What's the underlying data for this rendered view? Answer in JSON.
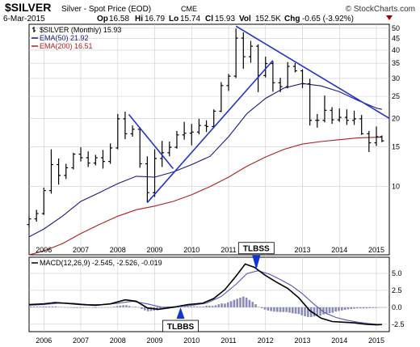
{
  "header": {
    "symbol": "$SILVER",
    "description": "Silver - Spot Price (EOD)",
    "exchange": "CME",
    "watermark": "© StockCharts.com",
    "date": "6-Mar-2015",
    "quote": {
      "open_label": "Op",
      "open": "16.58",
      "high_label": "Hi",
      "high": "16.79",
      "low_label": "Lo",
      "low": "15.74",
      "close_label": "Cl",
      "close": "15.93",
      "volume_label": "Vol",
      "volume": "152.5K",
      "change_label": "Chg",
      "change": "-0.65 (-3.92%)"
    }
  },
  "colors": {
    "price_bars": "#000000",
    "ema50": "#1a1a80",
    "ema200": "#b02020",
    "trendline": "#2233cc",
    "macd_line": "#000000",
    "signal_line": "#5555bb",
    "histogram": "#8a8ab8",
    "grid": "#cccccc"
  },
  "chart_data": [
    {
      "type": "ohlc",
      "name": "price-panel",
      "legend": [
        {
          "label": "$SILVER (Monthly) 15.93",
          "color": "#000000",
          "mark": "bar"
        },
        {
          "label": "EMA(50) 21.92",
          "color": "#1a1a80",
          "mark": "line"
        },
        {
          "label": "EMA(200) 16.51",
          "color": "#b02020",
          "mark": "line"
        }
      ],
      "yscale": "log",
      "ylim": [
        5,
        52
      ],
      "xlim": [
        2005.6,
        2015.35
      ],
      "yticks": [
        10,
        15,
        20,
        25,
        30,
        35,
        40,
        45,
        50
      ],
      "xticks": [
        2006,
        2007,
        2008,
        2009,
        2010,
        2011,
        2012,
        2013,
        2014,
        2015
      ],
      "grid": true,
      "x": [
        2005.6,
        2005.8,
        2006,
        2006.2,
        2006.4,
        2006.6,
        2006.8,
        2007,
        2007.2,
        2007.4,
        2007.6,
        2007.8,
        2008,
        2008.2,
        2008.4,
        2008.6,
        2008.8,
        2009,
        2009.2,
        2009.4,
        2009.6,
        2009.8,
        2010,
        2010.2,
        2010.4,
        2010.6,
        2010.8,
        2011,
        2011.2,
        2011.4,
        2011.6,
        2011.8,
        2012,
        2012.2,
        2012.4,
        2012.6,
        2012.8,
        2013,
        2013.2,
        2013.4,
        2013.6,
        2013.8,
        2014,
        2014.2,
        2014.4,
        2014.6,
        2014.8,
        2015,
        2015.15
      ],
      "ohlc": [
        [
          6.8,
          7.4,
          6.6,
          7.2
        ],
        [
          7.2,
          7.9,
          7.0,
          7.6
        ],
        [
          7.6,
          9.9,
          7.5,
          9.6
        ],
        [
          9.6,
          14.6,
          9.3,
          12.5
        ],
        [
          12.5,
          13.3,
          10.2,
          11.2
        ],
        [
          11.2,
          12.6,
          10.8,
          12.1
        ],
        [
          12.1,
          14.1,
          11.9,
          13.9
        ],
        [
          13.9,
          14.9,
          12.9,
          13.4
        ],
        [
          13.4,
          14.3,
          12.2,
          12.7
        ],
        [
          12.7,
          13.8,
          12.4,
          13.4
        ],
        [
          13.4,
          14.5,
          12.0,
          12.9
        ],
        [
          12.9,
          15.5,
          12.6,
          14.8
        ],
        [
          14.8,
          20.9,
          14.6,
          19.9
        ],
        [
          19.9,
          21.4,
          16.2,
          17.1
        ],
        [
          17.1,
          18.6,
          16.6,
          17.9
        ],
        [
          17.9,
          18.3,
          12.1,
          12.6
        ],
        [
          12.6,
          13.6,
          8.5,
          9.4
        ],
        [
          9.4,
          14.6,
          9.0,
          13.3
        ],
        [
          13.3,
          15.9,
          12.2,
          14.1
        ],
        [
          14.1,
          15.8,
          13.6,
          14.9
        ],
        [
          14.9,
          17.6,
          14.7,
          16.9
        ],
        [
          16.9,
          19.3,
          16.1,
          17.2
        ],
        [
          17.2,
          18.9,
          15.2,
          17.4
        ],
        [
          17.4,
          19.9,
          17.0,
          18.6
        ],
        [
          18.6,
          19.6,
          17.4,
          18.4
        ],
        [
          18.4,
          21.9,
          18.1,
          21.5
        ],
        [
          21.5,
          28.9,
          21.3,
          27.9
        ],
        [
          27.9,
          31.4,
          26.4,
          30.7
        ],
        [
          30.7,
          49.8,
          30.1,
          45.2
        ],
        [
          45.2,
          47.9,
          33.1,
          37.4
        ],
        [
          37.4,
          43.9,
          35.2,
          41.6
        ],
        [
          41.6,
          42.4,
          26.1,
          30.9
        ],
        [
          30.9,
          37.4,
          30.3,
          34.9
        ],
        [
          34.9,
          35.6,
          26.2,
          28.7
        ],
        [
          28.7,
          30.2,
          26.1,
          27.6
        ],
        [
          27.6,
          35.4,
          27.1,
          33.9
        ],
        [
          33.9,
          35.1,
          31.9,
          32.4
        ],
        [
          32.4,
          32.9,
          27.2,
          28.4
        ],
        [
          28.4,
          29.9,
          18.6,
          19.6
        ],
        [
          19.6,
          20.9,
          18.2,
          19.6
        ],
        [
          19.6,
          25.2,
          19.2,
          21.7
        ],
        [
          21.7,
          22.4,
          18.9,
          19.7
        ],
        [
          19.7,
          22.1,
          19.3,
          20.2
        ],
        [
          20.2,
          21.9,
          18.7,
          19.6
        ],
        [
          19.6,
          21.6,
          18.7,
          19.9
        ],
        [
          19.9,
          20.7,
          16.9,
          17.1
        ],
        [
          17.1,
          17.6,
          14.2,
          15.6
        ],
        [
          15.6,
          18.4,
          15.1,
          16.6
        ],
        [
          16.6,
          16.8,
          15.7,
          15.9
        ]
      ],
      "ema50": [
        [
          2005.6,
          6.0
        ],
        [
          2006,
          6.5
        ],
        [
          2006.5,
          7.4
        ],
        [
          2007,
          8.6
        ],
        [
          2007.5,
          9.4
        ],
        [
          2008,
          10.3
        ],
        [
          2008.5,
          11.1
        ],
        [
          2009,
          11.0
        ],
        [
          2009.5,
          11.6
        ],
        [
          2010,
          12.5
        ],
        [
          2010.5,
          13.6
        ],
        [
          2011,
          16.6
        ],
        [
          2011.5,
          21.0
        ],
        [
          2012,
          24.5
        ],
        [
          2012.5,
          27.2
        ],
        [
          2013,
          28.5
        ],
        [
          2013.5,
          27.8
        ],
        [
          2014,
          26.2
        ],
        [
          2014.5,
          24.0
        ],
        [
          2015,
          22.2
        ],
        [
          2015.15,
          21.9
        ]
      ],
      "ema200": [
        [
          2005.6,
          5.0
        ],
        [
          2006,
          5.2
        ],
        [
          2006.5,
          5.6
        ],
        [
          2007,
          6.2
        ],
        [
          2007.5,
          6.8
        ],
        [
          2008,
          7.4
        ],
        [
          2008.5,
          7.9
        ],
        [
          2009,
          8.2
        ],
        [
          2009.5,
          8.6
        ],
        [
          2010,
          9.2
        ],
        [
          2010.5,
          10.0
        ],
        [
          2011,
          11.0
        ],
        [
          2011.5,
          12.3
        ],
        [
          2012,
          13.5
        ],
        [
          2012.5,
          14.6
        ],
        [
          2013,
          15.4
        ],
        [
          2013.5,
          15.8
        ],
        [
          2014,
          16.1
        ],
        [
          2014.5,
          16.4
        ],
        [
          2015,
          16.5
        ],
        [
          2015.15,
          16.5
        ]
      ],
      "trendlines": [
        [
          [
            2008.3,
            20.8
          ],
          [
            2009.5,
            12.0
          ]
        ],
        [
          [
            2008.8,
            8.5
          ],
          [
            2012.2,
            36.0
          ]
        ],
        [
          [
            2011.2,
            51.0
          ],
          [
            2015.35,
            20.0
          ]
        ]
      ]
    },
    {
      "type": "macd",
      "name": "macd-panel",
      "legend": [
        {
          "label": "MACD(12,26,9) -2.545, -2.526, -0.019",
          "color": "#000000",
          "mark": "line"
        }
      ],
      "ylim": [
        -3.6,
        7.4
      ],
      "yticks": [
        -2.5,
        0.0,
        2.5,
        5.0
      ],
      "xlim": [
        2005.6,
        2015.35
      ],
      "xticks": [
        2006,
        2007,
        2008,
        2009,
        2010,
        2011,
        2012,
        2013,
        2014,
        2015
      ],
      "grid": true,
      "macd": [
        [
          2005.6,
          0.4
        ],
        [
          2006,
          0.5
        ],
        [
          2006.3,
          0.7
        ],
        [
          2006.6,
          0.6
        ],
        [
          2007,
          0.4
        ],
        [
          2007.4,
          0.3
        ],
        [
          2007.8,
          0.5
        ],
        [
          2008.2,
          1.1
        ],
        [
          2008.5,
          0.9
        ],
        [
          2008.8,
          -0.1
        ],
        [
          2009.1,
          -0.3
        ],
        [
          2009.5,
          0.0
        ],
        [
          2009.9,
          0.4
        ],
        [
          2010.3,
          0.6
        ],
        [
          2010.6,
          1.3
        ],
        [
          2010.9,
          2.6
        ],
        [
          2011.2,
          4.6
        ],
        [
          2011.45,
          6.4
        ],
        [
          2011.7,
          5.9
        ],
        [
          2012,
          4.7
        ],
        [
          2012.3,
          3.7
        ],
        [
          2012.6,
          2.8
        ],
        [
          2012.9,
          1.4
        ],
        [
          2013.2,
          -0.5
        ],
        [
          2013.5,
          -1.6
        ],
        [
          2013.8,
          -2.1
        ],
        [
          2014.1,
          -2.2
        ],
        [
          2014.4,
          -2.3
        ],
        [
          2014.7,
          -2.5
        ],
        [
          2015,
          -2.6
        ],
        [
          2015.15,
          -2.55
        ]
      ],
      "signal": [
        [
          2005.6,
          0.3
        ],
        [
          2006,
          0.4
        ],
        [
          2006.4,
          0.6
        ],
        [
          2006.8,
          0.6
        ],
        [
          2007.2,
          0.4
        ],
        [
          2007.6,
          0.4
        ],
        [
          2008,
          0.6
        ],
        [
          2008.4,
          0.9
        ],
        [
          2008.8,
          0.5
        ],
        [
          2009.2,
          0.0
        ],
        [
          2009.6,
          0.1
        ],
        [
          2010,
          0.3
        ],
        [
          2010.4,
          0.6
        ],
        [
          2010.8,
          1.6
        ],
        [
          2011.2,
          3.4
        ],
        [
          2011.5,
          5.0
        ],
        [
          2011.8,
          5.4
        ],
        [
          2012.1,
          4.9
        ],
        [
          2012.4,
          4.1
        ],
        [
          2012.7,
          3.2
        ],
        [
          2013,
          2.0
        ],
        [
          2013.3,
          0.5
        ],
        [
          2013.6,
          -0.8
        ],
        [
          2013.9,
          -1.5
        ],
        [
          2014.2,
          -1.9
        ],
        [
          2014.5,
          -2.2
        ],
        [
          2014.8,
          -2.4
        ],
        [
          2015,
          -2.5
        ],
        [
          2015.15,
          -2.53
        ]
      ],
      "annotations": [
        {
          "label": "TLBSS",
          "x": 2011.75,
          "y": 5.4,
          "arrow": "down"
        },
        {
          "label": "TLBBS",
          "x": 2009.7,
          "y": 0.1,
          "arrow": "up"
        }
      ]
    }
  ]
}
